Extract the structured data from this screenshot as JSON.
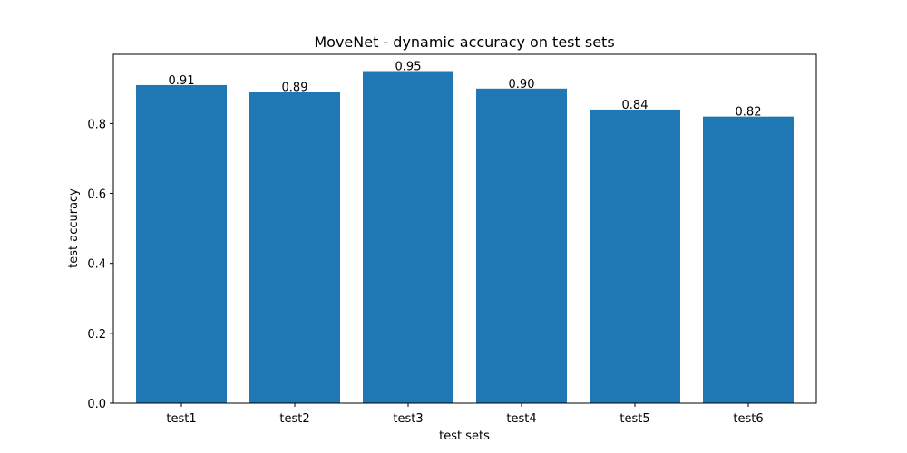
{
  "chart_data": {
    "type": "bar",
    "title": "MoveNet - dynamic accuracy on test sets",
    "xlabel": "test sets",
    "ylabel": "test accuracy",
    "categories": [
      "test1",
      "test2",
      "test3",
      "test4",
      "test5",
      "test6"
    ],
    "values": [
      0.91,
      0.89,
      0.95,
      0.9,
      0.84,
      0.82
    ],
    "data_labels": [
      "0.91",
      "0.89",
      "0.95",
      "0.90",
      "0.84",
      "0.82"
    ],
    "ylim": [
      0,
      0.998
    ],
    "yticks": [
      0.0,
      0.2,
      0.4,
      0.6,
      0.8
    ],
    "ytick_labels": [
      "0.0",
      "0.2",
      "0.4",
      "0.6",
      "0.8"
    ],
    "grid": false,
    "bar_color": "#1f77b4"
  }
}
